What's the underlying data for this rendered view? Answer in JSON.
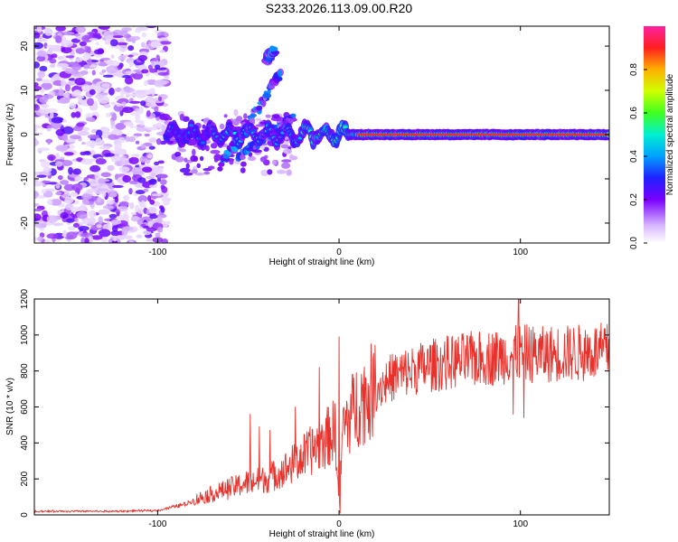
{
  "title": "S233.2026.113.09.00.R20",
  "colors": {
    "snr_line": "#e8312b",
    "axis": "#000000",
    "spectrogram_base": "#ffffff",
    "ridge_center": "#e8312b"
  },
  "chart_data": [
    {
      "type": "heatmap",
      "name": "spectrogram",
      "xlabel": "Height of straight line (km)",
      "ylabel": "Frequency (Hz)",
      "xlim": [
        -168,
        149
      ],
      "ylim": [
        -24.5,
        24.5
      ],
      "xticks": [
        -100,
        0,
        100
      ],
      "xtick_labels": [
        "-100",
        "0",
        "100"
      ],
      "yticks": [
        -20,
        -10,
        0,
        10,
        20
      ],
      "ytick_labels": [
        "-20",
        "-10",
        "0",
        "10",
        "20"
      ],
      "colorbar": {
        "label": "Normalized spectral amplitude",
        "range": [
          0,
          1
        ],
        "ticks": [
          0.0,
          0.2,
          0.4,
          0.6,
          0.8
        ],
        "tick_labels": [
          "0.0",
          "0.2",
          "0.4",
          "0.6",
          "0.8"
        ],
        "colormap": "rainbow (white-violet-blue-cyan-green-yellow-red-magenta)"
      },
      "features": {
        "noise_region_x": [
          -168,
          -95
        ],
        "main_ridge_frequency_hz": 0,
        "main_ridge_x_start": -95,
        "main_ridge_x_end": 149,
        "diagonal_streaks": [
          {
            "x": [
              -65,
              -32
            ],
            "f": [
              -7,
              14
            ]
          },
          {
            "x": [
              -55,
              -25
            ],
            "f": [
              -5,
              4
            ]
          },
          {
            "x": [
              -40,
              -36
            ],
            "f": [
              17,
              19
            ]
          }
        ]
      }
    },
    {
      "type": "line",
      "name": "snr",
      "xlabel": "Height of straight line (km)",
      "ylabel": "SNR (10 * v/v)",
      "xlim": [
        -168,
        149
      ],
      "ylim": [
        0,
        1200
      ],
      "xticks": [
        -100,
        0,
        100
      ],
      "xtick_labels": [
        "-100",
        "0",
        "100"
      ],
      "yticks": [
        0,
        200,
        400,
        600,
        800,
        1000,
        1200
      ],
      "ytick_labels": [
        "0",
        "200",
        "400",
        "600",
        "800",
        "1000",
        "1200"
      ],
      "series": [
        {
          "name": "SNR",
          "trend": {
            "x": [
              -168,
              -120,
              -100,
              -85,
              -75,
              -60,
              -50,
              -40,
              -30,
              -20,
              -10,
              -2,
              0,
              2,
              10,
              20,
              30,
              50,
              70,
              90,
              100,
              110,
              130,
              149
            ],
            "y": [
              20,
              20,
              25,
              60,
              100,
              150,
              180,
              200,
              250,
              320,
              400,
              470,
              40,
              480,
              620,
              700,
              770,
              830,
              860,
              880,
              900,
              890,
              900,
              910
            ]
          },
          "spikes": [
            {
              "x": -49,
              "y": 560
            },
            {
              "x": -44,
              "y": 490
            },
            {
              "x": -38,
              "y": 470
            },
            {
              "x": -24,
              "y": 600
            },
            {
              "x": -11,
              "y": 820
            },
            {
              "x": 0,
              "y": 990
            },
            {
              "x": 0.6,
              "y": 10
            },
            {
              "x": 99,
              "y": 1200
            },
            {
              "x": 96,
              "y": 560
            },
            {
              "x": 102,
              "y": 540
            }
          ],
          "noise_amplitude_percent_of_value": 18
        }
      ]
    }
  ]
}
